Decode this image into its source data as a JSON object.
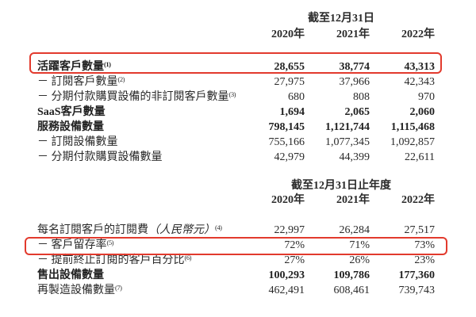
{
  "theme": {
    "highlight-color": "#e23a2d",
    "text-color": "#2a2a2a"
  },
  "table1": {
    "period_header": "截至12月31日",
    "col_headers": [
      "2020年",
      "2021年",
      "2022年"
    ],
    "rows": [
      {
        "label": "活躍客戶數量",
        "sup": "(1)",
        "values": [
          "28,655",
          "38,774",
          "43,313"
        ]
      },
      {
        "label": "－ 訂閱客戶數量",
        "sup": "(2)",
        "values": [
          "27,975",
          "37,966",
          "42,343"
        ]
      },
      {
        "label": "－ 分期付款購買設備的非訂閱客戶數量",
        "sup": "(3)",
        "values": [
          "680",
          "808",
          "970"
        ]
      },
      {
        "label": "SaaS客戶數量",
        "values": [
          "1,694",
          "2,065",
          "2,060"
        ]
      },
      {
        "label": "服務設備數量",
        "values": [
          "798,145",
          "1,121,744",
          "1,115,468"
        ]
      },
      {
        "label": "－ 訂閱設備數量",
        "values": [
          "755,166",
          "1,077,345",
          "1,092,857"
        ]
      },
      {
        "label": "－ 分期付款購買設備數量",
        "values": [
          "42,979",
          "44,399",
          "22,611"
        ]
      }
    ]
  },
  "table2": {
    "period_header": "截至12月31日止年度",
    "col_headers": [
      "2020年",
      "2021年",
      "2022年"
    ],
    "rows": [
      {
        "label": "每名訂閱客戶的訂閱費",
        "italic": "（人民幣元）",
        "sup": "(4)",
        "values": [
          "22,997",
          "26,284",
          "27,517"
        ]
      },
      {
        "label": "－ 客戶留存率",
        "sup": "(5)",
        "values": [
          "72%",
          "71%",
          "73%"
        ]
      },
      {
        "label": "－ 提前終止訂閱的客戶百分比",
        "sup": "(6)",
        "values": [
          "27%",
          "26%",
          "23%"
        ]
      },
      {
        "label": "售出設備數量",
        "values": [
          "100,293",
          "109,786",
          "177,360"
        ]
      },
      {
        "label": "再製造設備數量",
        "sup": "(7)",
        "values": [
          "462,491",
          "608,461",
          "739,743"
        ]
      }
    ]
  }
}
